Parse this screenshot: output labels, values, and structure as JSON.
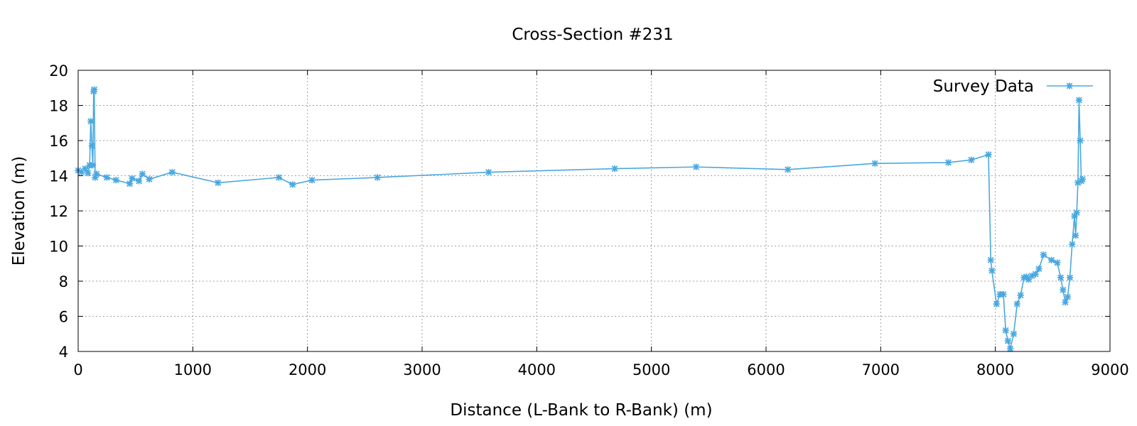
{
  "chart_data": {
    "type": "line",
    "title": "Cross-Section #231",
    "xlabel": "Distance (L-Bank to R-Bank) (m)",
    "ylabel": "Elevation (m)",
    "xlim": [
      0,
      9000
    ],
    "ylim": [
      4,
      20
    ],
    "xticks": [
      0,
      1000,
      2000,
      3000,
      4000,
      5000,
      6000,
      7000,
      8000,
      9000
    ],
    "yticks": [
      4,
      6,
      8,
      10,
      12,
      14,
      16,
      18,
      20
    ],
    "grid": true,
    "legend_position": "top-right",
    "series_color": "#4aa8e0",
    "series": [
      {
        "name": "Survey Data",
        "x": [
          0,
          30,
          60,
          85,
          100,
          110,
          120,
          128,
          135,
          140,
          148,
          160,
          250,
          330,
          450,
          470,
          530,
          560,
          620,
          820,
          1220,
          1750,
          1870,
          2040,
          2610,
          3580,
          4680,
          5390,
          6190,
          6950,
          7590,
          7790,
          7940,
          7960,
          7970,
          8010,
          8040,
          8070,
          8090,
          8110,
          8130,
          8160,
          8190,
          8220,
          8250,
          8270,
          8290,
          8320,
          8350,
          8380,
          8420,
          8490,
          8540,
          8570,
          8590,
          8610,
          8630,
          8650,
          8670,
          8690,
          8700,
          8710,
          8720,
          8730,
          8740,
          8750,
          8760
        ],
        "y": [
          14.3,
          14.2,
          14.4,
          14.15,
          14.6,
          17.1,
          15.7,
          14.6,
          18.8,
          18.9,
          13.9,
          14.1,
          13.9,
          13.75,
          13.55,
          13.85,
          13.7,
          14.1,
          13.8,
          14.2,
          13.6,
          13.9,
          13.5,
          13.75,
          13.9,
          14.2,
          14.4,
          14.5,
          14.35,
          14.7,
          14.75,
          14.9,
          15.2,
          9.2,
          8.6,
          6.7,
          7.25,
          7.25,
          5.2,
          4.6,
          4.15,
          5.0,
          6.7,
          7.2,
          8.2,
          8.25,
          8.1,
          8.3,
          8.4,
          8.7,
          9.5,
          9.2,
          9.05,
          8.2,
          7.5,
          6.8,
          7.1,
          8.2,
          10.1,
          11.7,
          10.6,
          11.9,
          13.6,
          18.3,
          16.0,
          13.7,
          13.8
        ]
      }
    ]
  }
}
